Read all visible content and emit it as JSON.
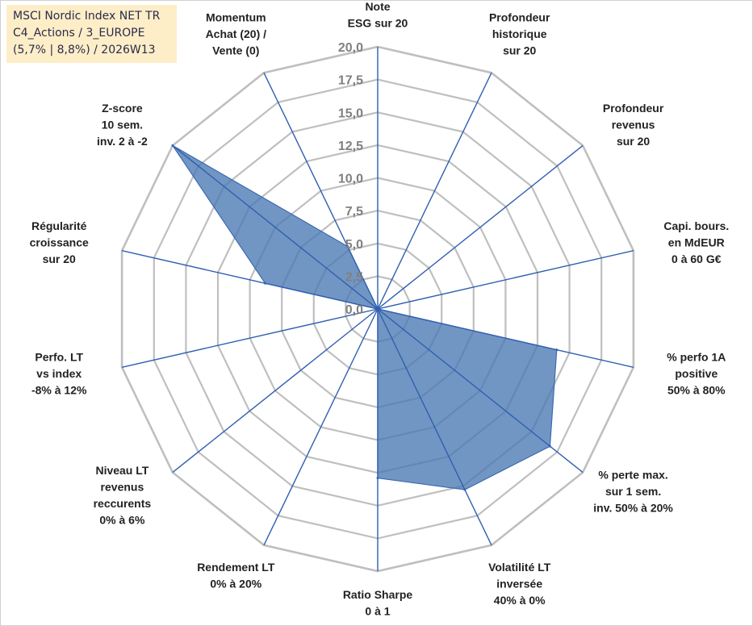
{
  "title_box": {
    "line1": "MSCI Nordic Index NET TR",
    "line2": "C4_Actions / 3_EUROPE",
    "line3": "(5,7% | 8,8%) / 2026W13"
  },
  "colors": {
    "fill": "#4a78b2",
    "line": "#3a6ab0",
    "spoke": "#2f5fb0",
    "grid": "#bfbfbf",
    "title_bg": "#fdeec8"
  },
  "chart_data": {
    "type": "radar",
    "title": "MSCI Nordic Index NET TR",
    "rmin": 0,
    "rmax": 20,
    "step": 2.5,
    "tick_labels": [
      "0,0",
      "2,5",
      "5,0",
      "7,5",
      "10,0",
      "12,5",
      "15,0",
      "17,5",
      "20,0"
    ],
    "axes": [
      {
        "label": [
          "Note",
          "ESG sur 20"
        ],
        "value": 0
      },
      {
        "label": [
          "Profondeur",
          "historique",
          "sur 20"
        ],
        "value": 0
      },
      {
        "label": [
          "Profondeur",
          "revenus",
          "sur 20"
        ],
        "value": 0
      },
      {
        "label": [
          "Capi. bours.",
          "en MdEUR",
          "0 à 60 G€"
        ],
        "value": 0
      },
      {
        "label": [
          "% perfo 1A",
          "positive",
          "50% à 80%"
        ],
        "value": 14
      },
      {
        "label": [
          "% perte max.",
          "sur 1 sem.",
          "inv. 50% à 20%"
        ],
        "value": 16.8
      },
      {
        "label": [
          "Volatilité LT",
          "inversée",
          "40% à 0%"
        ],
        "value": 15.3
      },
      {
        "label": [
          "Ratio Sharpe",
          "0 à 1"
        ],
        "value": 12.9
      },
      {
        "label": [
          "Rendement LT",
          "0% à 20%"
        ],
        "value": 0
      },
      {
        "label": [
          "Niveau LT",
          "revenus",
          "reccurents",
          "0% à 6%"
        ],
        "value": 0
      },
      {
        "label": [
          "Perfo. LT",
          "vs index",
          "-8% à 12%"
        ],
        "value": 0
      },
      {
        "label": [
          "Régularité",
          "croissance",
          "sur 20"
        ],
        "value": 8.8
      },
      {
        "label": [
          "Z-score",
          "10 sem.",
          "inv. 2 à -2"
        ],
        "value": 20
      },
      {
        "label": [
          "Momentum",
          "Achat (20) /",
          "Vente (0)"
        ],
        "value": 5.3
      }
    ]
  }
}
